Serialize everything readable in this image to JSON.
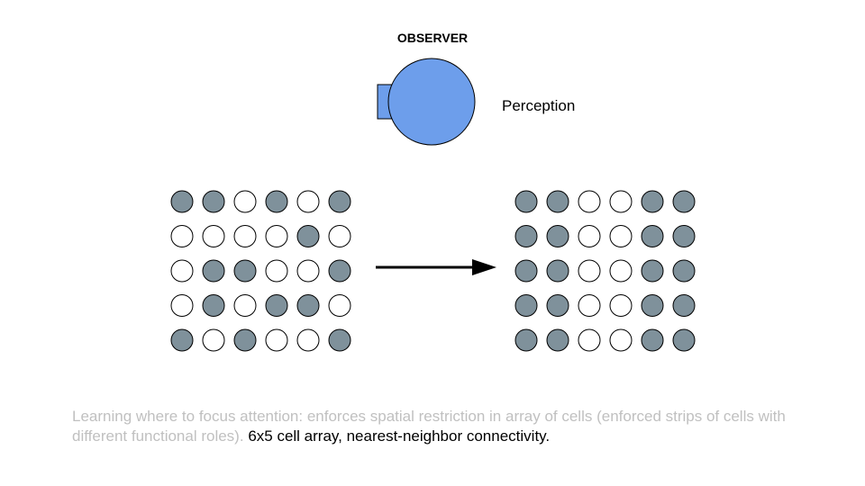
{
  "observer": {
    "title": "OBSERVER",
    "icon": "observer-eye-icon",
    "fill_color": "#6d9eeb",
    "label": "Perception"
  },
  "cell_colors": {
    "active": "#7f919b",
    "inactive": "#ffffff",
    "stroke": "#000000"
  },
  "grid_before": {
    "columns": 6,
    "rows": 5,
    "cells": [
      [
        1,
        1,
        0,
        1,
        0,
        1
      ],
      [
        0,
        0,
        0,
        0,
        1,
        0
      ],
      [
        0,
        1,
        1,
        0,
        0,
        1
      ],
      [
        0,
        1,
        0,
        1,
        1,
        0
      ],
      [
        1,
        0,
        1,
        0,
        0,
        1
      ]
    ]
  },
  "grid_after": {
    "columns": 6,
    "rows": 5,
    "cells": [
      [
        1,
        1,
        0,
        0,
        1,
        1
      ],
      [
        1,
        1,
        0,
        0,
        1,
        1
      ],
      [
        1,
        1,
        0,
        0,
        1,
        1
      ],
      [
        1,
        1,
        0,
        0,
        1,
        1
      ],
      [
        1,
        1,
        0,
        0,
        1,
        1
      ]
    ]
  },
  "arrow": {
    "icon": "right-arrow-icon"
  },
  "caption": {
    "light_text": "Learning where to focus attention: enforces spatial restriction in array of cells (enforced strips of cells with different functional roles).",
    "dark_text": "6x5 cell array, nearest-neighbor connectivity."
  }
}
